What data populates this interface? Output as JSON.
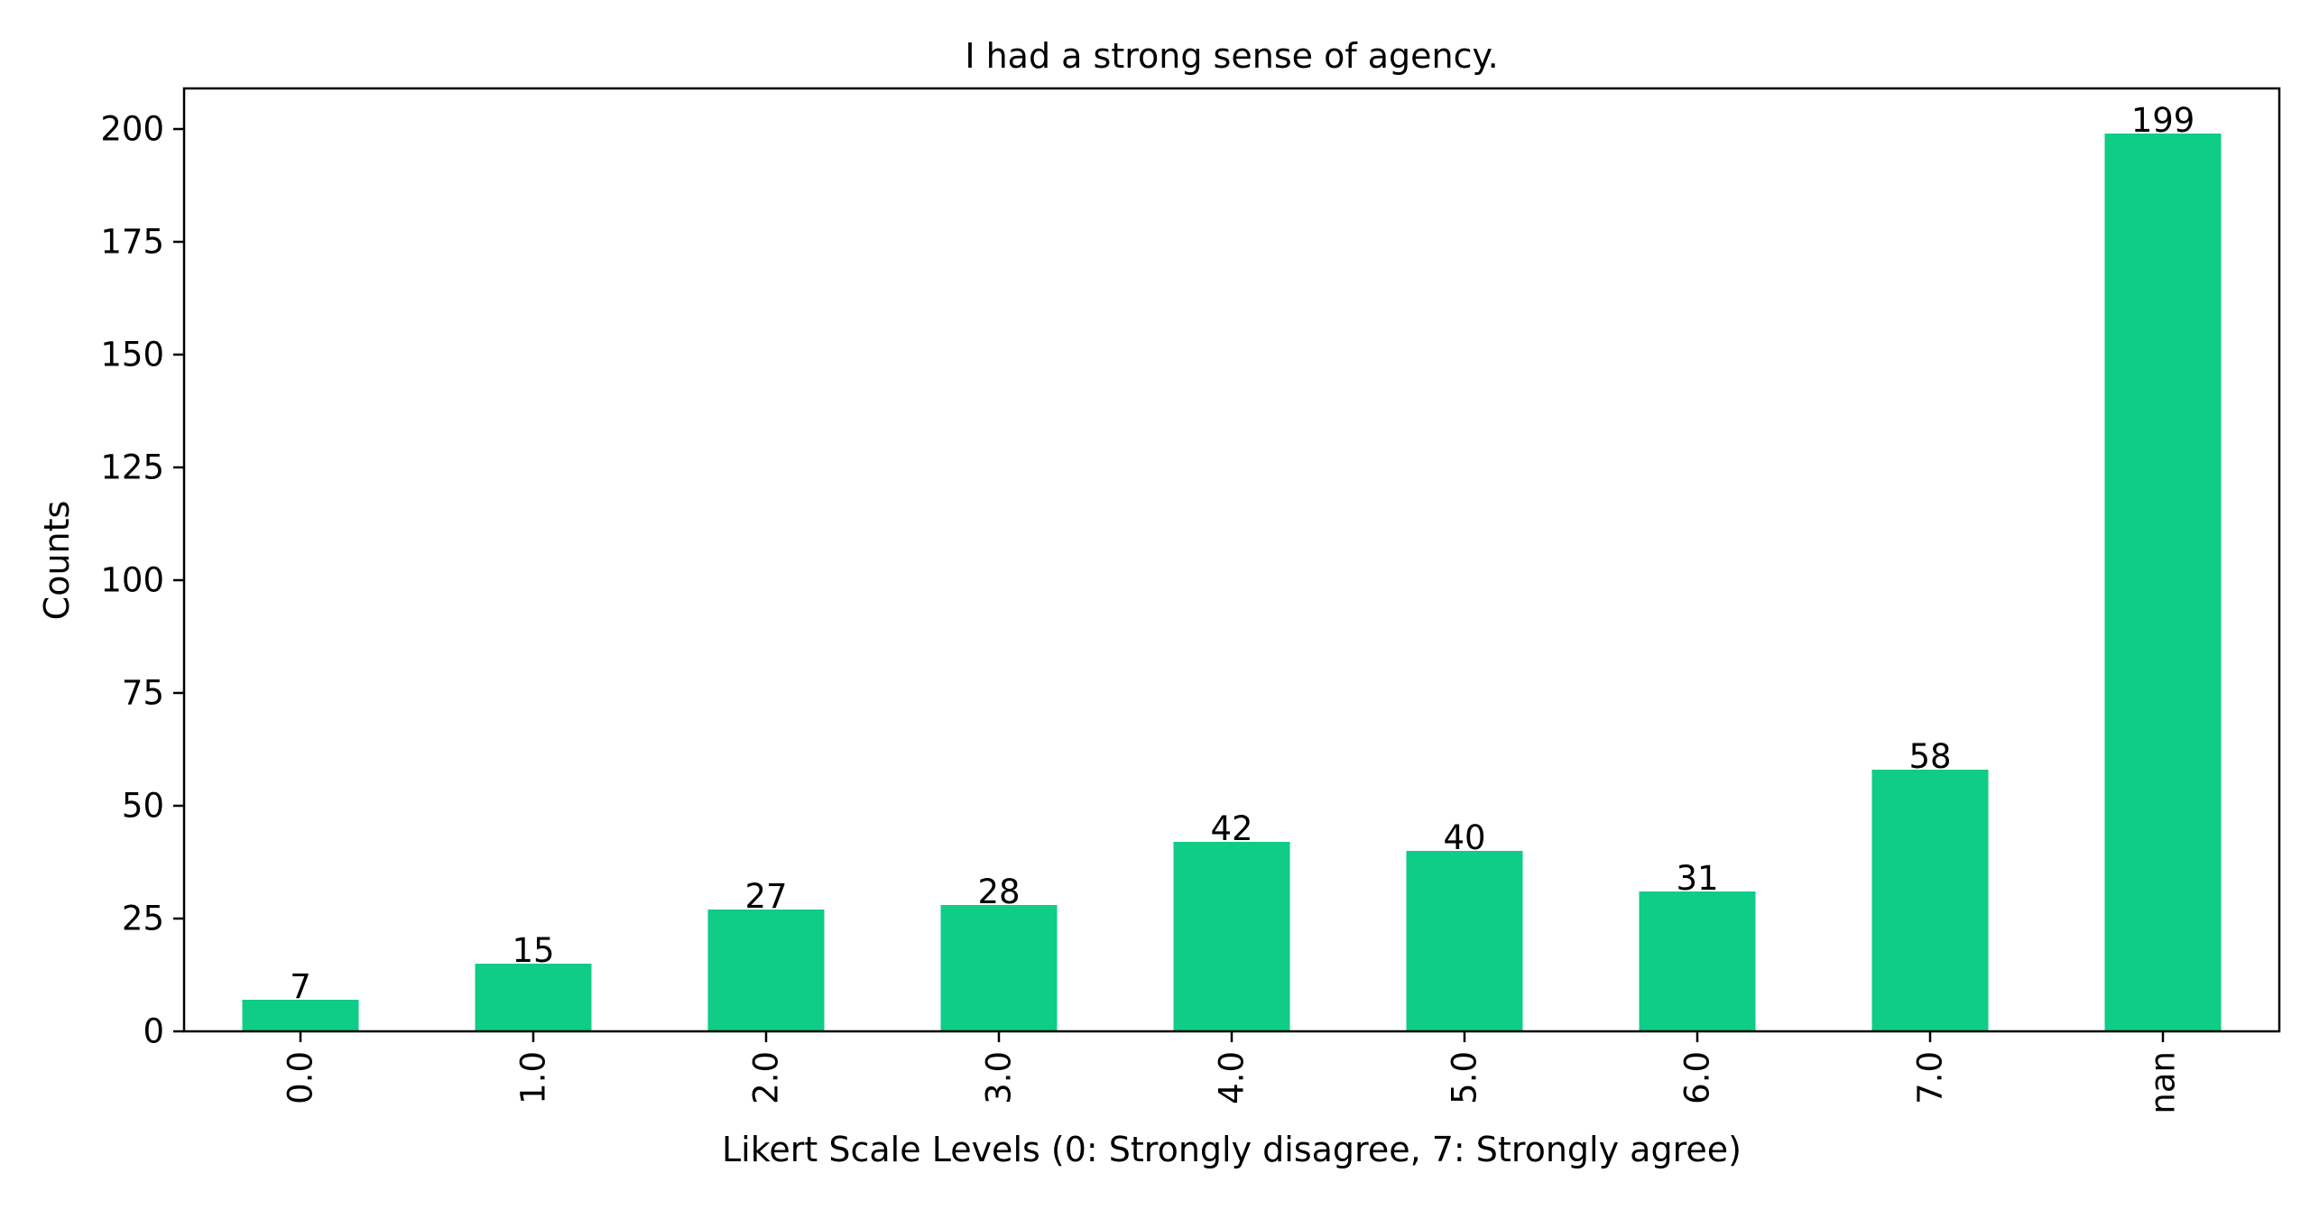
{
  "chart_data": {
    "type": "bar",
    "title": "I had a strong sense of agency.",
    "xlabel": "Likert Scale Levels (0: Strongly disagree, 7: Strongly agree)",
    "ylabel": "Counts",
    "categories": [
      "0.0",
      "1.0",
      "2.0",
      "3.0",
      "4.0",
      "5.0",
      "6.0",
      "7.0",
      "nan"
    ],
    "values": [
      7,
      15,
      27,
      28,
      42,
      40,
      31,
      58,
      199
    ],
    "ylim": [
      0,
      209
    ],
    "yticks": [
      0,
      25,
      50,
      75,
      100,
      125,
      150,
      175,
      200
    ],
    "grid": false,
    "legend": "none",
    "bar_color": "#0fcc86",
    "x_tick_rotation": "vertical"
  }
}
